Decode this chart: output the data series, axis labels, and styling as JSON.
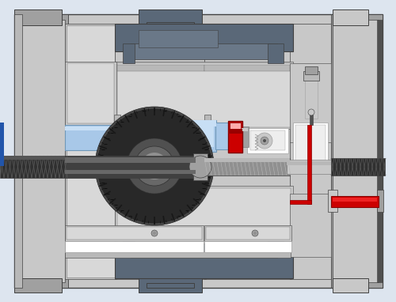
{
  "bg_color": "#dde5ef",
  "colors": {
    "light_gray": "#c8c8c8",
    "lighter_gray": "#d8d8d8",
    "mid_gray": "#a0a0a0",
    "panel_gray": "#b8b8b8",
    "dark_gray": "#686868",
    "darker_gray": "#505050",
    "darkest_gray": "#383838",
    "steel_blue_dark": "#5a6878",
    "steel_blue_mid": "#6a7888",
    "blue_fill": "#a8c8e8",
    "blue_light": "#c8dff5",
    "blue_dark": "#7098b8",
    "red": "#cc0000",
    "red_bright": "#ee2222",
    "red_light": "#ffaaaa",
    "white": "#ffffff",
    "near_white": "#eeeeee",
    "outline": "#404040",
    "outline_light": "#707070",
    "gear_body": "#282828",
    "gear_mid": "#484848",
    "shaft_dark": "#404040",
    "shaft_mid": "#686868",
    "shaft_light": "#909090",
    "shaft_highlight": "#b8b8b8",
    "thread_dark": "#303030",
    "thread_stripe": "#585858"
  }
}
